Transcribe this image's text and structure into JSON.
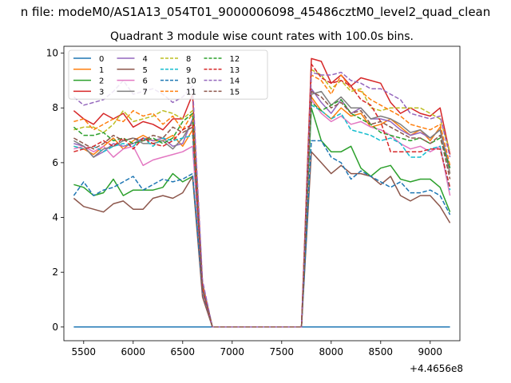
{
  "chart_data": {
    "type": "line",
    "suptitle": "n file: modeM0/AS1A13_054T01_9000006098_45486cztM0_level2_quad_clean",
    "title": "Quadrant 3 module wise count rates with 100.0s bins.",
    "xlabel": "",
    "ylabel": "",
    "offset_text": "+4.4656e8",
    "xlim": [
      5300,
      9300
    ],
    "ylim": [
      -0.5,
      10.25
    ],
    "xticks": [
      5500,
      6000,
      6500,
      7000,
      7500,
      8000,
      8500,
      9000
    ],
    "yticks": [
      0,
      2,
      4,
      6,
      8,
      10
    ],
    "grid": false,
    "legend_placement": "upper-left",
    "legend_columns": 4,
    "x": [
      5400,
      5500,
      5600,
      5700,
      5800,
      5900,
      6000,
      6100,
      6200,
      6300,
      6400,
      6500,
      6600,
      6700,
      6800,
      6900,
      7000,
      7100,
      7200,
      7300,
      7400,
      7500,
      7600,
      7700,
      7800,
      7900,
      8000,
      8100,
      8200,
      8300,
      8400,
      8500,
      8600,
      8700,
      8800,
      8900,
      9000,
      9100,
      9200
    ],
    "series": [
      {
        "name": "0",
        "color": "#1f77b4",
        "dashed": false,
        "values": [
          0,
          0,
          0,
          0,
          0,
          0,
          0,
          0,
          0,
          0,
          0,
          0,
          0,
          0,
          0,
          0,
          0,
          0,
          0,
          0,
          0,
          0,
          0,
          0,
          0,
          0,
          0,
          0,
          0,
          0,
          0,
          0,
          0,
          0,
          0,
          0,
          0,
          0,
          0
        ]
      },
      {
        "name": "1",
        "color": "#ff7f0e",
        "dashed": false,
        "values": [
          6.6,
          6.5,
          6.3,
          6.6,
          6.9,
          6.5,
          6.8,
          7.0,
          6.8,
          6.8,
          7.0,
          6.6,
          7.2,
          1.5,
          0,
          0,
          0,
          0,
          0,
          0,
          0,
          0,
          0,
          0,
          8.4,
          7.9,
          7.6,
          8.0,
          7.7,
          7.8,
          7.3,
          7.4,
          7.6,
          7.3,
          7.0,
          7.2,
          6.8,
          7.3,
          5.6
        ]
      },
      {
        "name": "2",
        "color": "#2ca02c",
        "dashed": false,
        "values": [
          5.2,
          5.1,
          4.8,
          4.9,
          5.4,
          4.8,
          5.0,
          5.0,
          5.0,
          5.1,
          5.6,
          5.3,
          5.5,
          1.4,
          0,
          0,
          0,
          0,
          0,
          0,
          0,
          0,
          0,
          0,
          8.0,
          6.8,
          6.4,
          6.4,
          6.6,
          5.8,
          5.5,
          5.8,
          5.9,
          5.4,
          5.3,
          5.4,
          5.4,
          5.1,
          4.2
        ]
      },
      {
        "name": "3",
        "color": "#d62728",
        "dashed": false,
        "values": [
          7.9,
          7.6,
          7.4,
          7.8,
          7.6,
          7.8,
          7.3,
          7.5,
          7.4,
          7.2,
          7.6,
          7.6,
          8.5,
          1.6,
          0,
          0,
          0,
          0,
          0,
          0,
          0,
          0,
          0,
          0,
          9.8,
          9.7,
          8.9,
          9.2,
          8.8,
          9.1,
          9.0,
          8.9,
          8.2,
          7.8,
          8.0,
          7.8,
          7.7,
          8.0,
          6.3
        ]
      },
      {
        "name": "4",
        "color": "#9467bd",
        "dashed": false,
        "values": [
          6.7,
          6.6,
          6.2,
          6.4,
          6.7,
          6.6,
          6.7,
          6.9,
          6.8,
          6.9,
          6.6,
          6.7,
          7.6,
          1.5,
          0,
          0,
          0,
          0,
          0,
          0,
          0,
          0,
          0,
          0,
          8.7,
          8.2,
          7.8,
          8.3,
          7.8,
          8.0,
          7.6,
          7.6,
          7.5,
          7.2,
          7.0,
          7.1,
          6.9,
          7.2,
          5.8
        ]
      },
      {
        "name": "5",
        "color": "#8c564b",
        "dashed": false,
        "values": [
          4.7,
          4.4,
          4.3,
          4.2,
          4.5,
          4.6,
          4.3,
          4.3,
          4.7,
          4.8,
          4.7,
          4.9,
          5.5,
          1.1,
          0,
          0,
          0,
          0,
          0,
          0,
          0,
          0,
          0,
          0,
          6.4,
          6.0,
          5.6,
          5.9,
          5.6,
          5.6,
          5.5,
          5.2,
          5.5,
          4.8,
          4.6,
          4.8,
          4.8,
          4.4,
          3.8
        ]
      },
      {
        "name": "6",
        "color": "#e377c2",
        "dashed": false,
        "values": [
          6.5,
          6.6,
          6.4,
          6.6,
          6.2,
          6.5,
          6.6,
          5.9,
          6.1,
          6.2,
          6.3,
          6.4,
          6.6,
          1.3,
          0,
          0,
          0,
          0,
          0,
          0,
          0,
          0,
          0,
          0,
          8.3,
          7.8,
          7.5,
          7.7,
          7.4,
          7.5,
          7.3,
          7.2,
          7.0,
          6.7,
          6.5,
          6.6,
          6.4,
          6.6,
          4.8
        ]
      },
      {
        "name": "7",
        "color": "#7f7f7f",
        "dashed": false,
        "values": [
          6.8,
          6.6,
          6.2,
          6.5,
          6.6,
          6.8,
          6.9,
          6.7,
          6.7,
          6.8,
          6.5,
          6.9,
          7.5,
          1.5,
          0,
          0,
          0,
          0,
          0,
          0,
          0,
          0,
          0,
          0,
          8.5,
          8.6,
          8.1,
          8.4,
          8.0,
          8.0,
          7.6,
          7.7,
          7.6,
          7.4,
          7.1,
          7.2,
          6.9,
          7.2,
          5.6
        ]
      },
      {
        "name": "8",
        "color": "#bcbd22",
        "dashed": true,
        "values": [
          7.2,
          7.3,
          7.3,
          7.1,
          7.4,
          7.9,
          7.5,
          7.6,
          7.7,
          7.9,
          7.8,
          7.6,
          7.9,
          1.6,
          0,
          0,
          0,
          0,
          0,
          0,
          0,
          0,
          0,
          0,
          9.4,
          9.2,
          8.7,
          9.0,
          8.6,
          8.7,
          8.0,
          7.9,
          8.0,
          8.0,
          8.0,
          8.0,
          7.8,
          7.6,
          6.4
        ]
      },
      {
        "name": "9",
        "color": "#17becf",
        "dashed": true,
        "values": [
          6.6,
          6.5,
          6.6,
          6.4,
          6.6,
          6.7,
          6.6,
          6.9,
          6.6,
          6.9,
          6.8,
          6.9,
          7.0,
          1.4,
          0,
          0,
          0,
          0,
          0,
          0,
          0,
          0,
          0,
          0,
          8.1,
          7.9,
          7.6,
          7.8,
          7.2,
          7.1,
          7.0,
          6.8,
          6.9,
          6.7,
          6.2,
          6.2,
          6.5,
          6.6,
          5.0
        ]
      },
      {
        "name": "10",
        "color": "#1f77b4",
        "dashed": true,
        "values": [
          4.8,
          5.3,
          4.8,
          5.0,
          5.1,
          5.3,
          5.5,
          5.0,
          5.2,
          5.4,
          5.3,
          5.4,
          5.6,
          1.3,
          0,
          0,
          0,
          0,
          0,
          0,
          0,
          0,
          0,
          0,
          6.8,
          6.8,
          6.2,
          6.0,
          5.4,
          5.7,
          5.5,
          5.3,
          5.1,
          5.3,
          4.9,
          4.9,
          5.0,
          4.8,
          4.1
        ]
      },
      {
        "name": "11",
        "color": "#ff7f0e",
        "dashed": true,
        "values": [
          7.5,
          7.6,
          7.2,
          7.4,
          7.6,
          7.5,
          7.9,
          7.7,
          7.8,
          7.4,
          7.7,
          7.2,
          7.8,
          1.5,
          0,
          0,
          0,
          0,
          0,
          0,
          0,
          0,
          0,
          0,
          9.2,
          9.0,
          8.5,
          9.2,
          8.7,
          8.6,
          8.3,
          8.1,
          7.9,
          7.7,
          7.4,
          7.3,
          7.2,
          7.4,
          5.9
        ]
      },
      {
        "name": "12",
        "color": "#2ca02c",
        "dashed": true,
        "values": [
          7.3,
          7.0,
          7.0,
          7.1,
          6.8,
          6.9,
          6.7,
          6.8,
          6.9,
          6.7,
          6.9,
          7.5,
          7.8,
          1.4,
          0,
          0,
          0,
          0,
          0,
          0,
          0,
          0,
          0,
          0,
          8.2,
          7.9,
          8.1,
          8.3,
          7.8,
          7.6,
          7.4,
          7.1,
          7.0,
          6.9,
          6.8,
          6.9,
          6.7,
          6.9,
          5.8
        ]
      },
      {
        "name": "13",
        "color": "#d62728",
        "dashed": true,
        "values": [
          6.4,
          6.5,
          6.6,
          6.8,
          6.6,
          6.9,
          6.5,
          6.9,
          6.7,
          6.6,
          6.8,
          7.2,
          7.4,
          1.4,
          0,
          0,
          0,
          0,
          0,
          0,
          0,
          0,
          0,
          0,
          9.6,
          9.1,
          8.9,
          9.0,
          8.8,
          8.3,
          8.1,
          7.5,
          6.4,
          6.4,
          6.4,
          6.4,
          6.5,
          6.5,
          5.1
        ]
      },
      {
        "name": "14",
        "color": "#9467bd",
        "dashed": true,
        "values": [
          8.4,
          8.1,
          8.2,
          8.3,
          8.6,
          9.0,
          8.5,
          8.6,
          8.7,
          8.5,
          8.2,
          8.4,
          8.8,
          1.7,
          0,
          0,
          0,
          0,
          0,
          0,
          0,
          0,
          0,
          0,
          9.3,
          9.2,
          9.2,
          9.3,
          9.0,
          8.9,
          8.7,
          8.7,
          8.5,
          8.3,
          7.8,
          7.7,
          7.6,
          7.7,
          6.2
        ]
      },
      {
        "name": "15",
        "color": "#8c564b",
        "dashed": true,
        "values": [
          6.9,
          6.7,
          6.5,
          6.7,
          7.0,
          6.8,
          6.9,
          6.8,
          7.0,
          6.9,
          7.3,
          7.1,
          7.3,
          1.4,
          0,
          0,
          0,
          0,
          0,
          0,
          0,
          0,
          0,
          0,
          8.6,
          8.4,
          8.0,
          8.2,
          7.8,
          7.9,
          7.4,
          7.5,
          7.3,
          7.1,
          6.9,
          6.9,
          6.7,
          7.0,
          5.4
        ]
      }
    ]
  }
}
